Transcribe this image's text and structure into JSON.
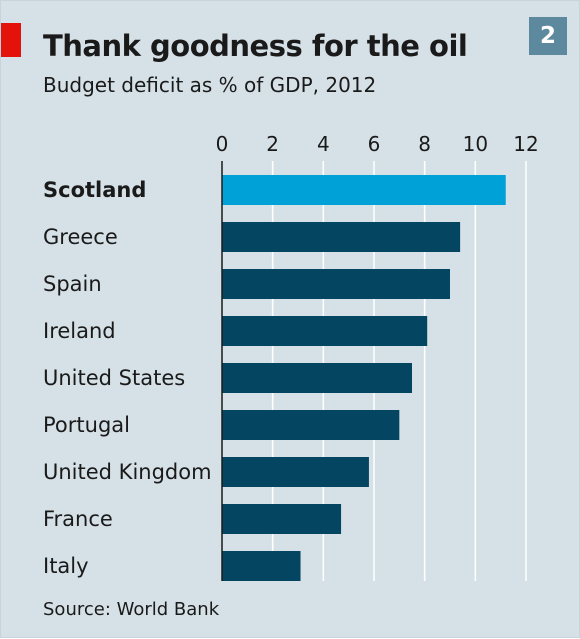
{
  "header": {
    "title": "Thank goodness for the oil",
    "subtitle": "Budget deficit as % of GDP, 2012",
    "badge": "2"
  },
  "footer": {
    "source": "Source: World Bank"
  },
  "colors": {
    "background": "#d6e1e7",
    "highlight_bar": "#00a1d6",
    "bar": "#044661",
    "accent_tab": "#e3120b",
    "badge": "#5d899f",
    "gridline": "#ffffff"
  },
  "chart_data": {
    "type": "bar",
    "orientation": "horizontal",
    "title": "Thank goodness for the oil",
    "subtitle": "Budget deficit as % of GDP, 2012",
    "categories": [
      "Scotland",
      "Greece",
      "Spain",
      "Ireland",
      "United States",
      "Portugal",
      "United Kingdom",
      "France",
      "Italy"
    ],
    "values": [
      11.2,
      9.4,
      9.0,
      8.1,
      7.5,
      7.0,
      5.8,
      4.7,
      3.1
    ],
    "highlight": "Scotland",
    "xlim": [
      0,
      12
    ],
    "xticks": [
      "0",
      "2",
      "4",
      "6",
      "8",
      "10",
      "12"
    ],
    "axis_position": "top",
    "grid": true,
    "xlabel": "",
    "ylabel": ""
  }
}
